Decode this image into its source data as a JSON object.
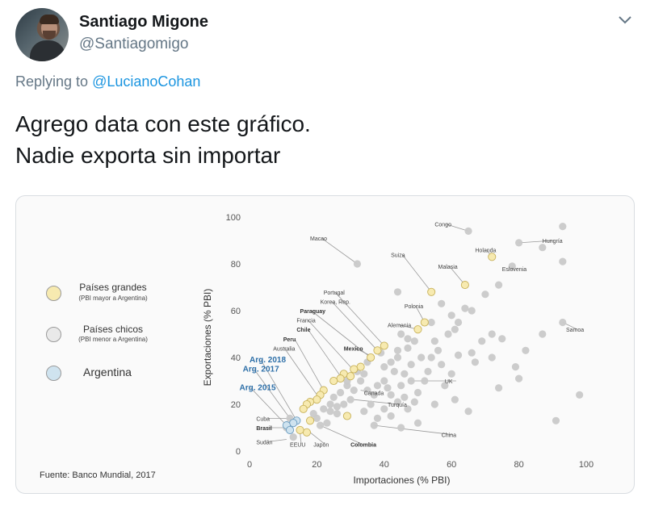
{
  "tweet": {
    "author_name": "Santiago Migone",
    "author_handle": "@Santiagomigo",
    "reply_prefix": "Replying to",
    "reply_to": "@LucianoCohan",
    "text": "Agrego data con este gráfico.\nNadie exporta sin importar"
  },
  "icons": {
    "avatar": "avatar-photo",
    "menu": "chevron-down-icon"
  },
  "colors": {
    "accent": "#1b95e0",
    "large_country": "#f7eab0",
    "small_country": "#c9c9c9",
    "argentina": "#cfe3ef",
    "argentina_label": "#2d6fa8"
  },
  "legend": {
    "large_title": "Países grandes",
    "large_sub": "(PBI mayor a Argentina)",
    "small_title": "Países chicos",
    "small_sub": "(PBI menor a Argentina)",
    "argentina": "Argentina"
  },
  "source": "Fuente: Banco Mundial, 2017",
  "chart_data": {
    "type": "scatter",
    "xlabel": "Importaciones (% PBI)",
    "ylabel": "Exportaciones (% PBI)",
    "xlim": [
      0,
      100
    ],
    "ylim": [
      0,
      100
    ],
    "xticks": [
      0,
      20,
      40,
      60,
      80,
      100
    ],
    "yticks": [
      0,
      20,
      40,
      60,
      80,
      100
    ],
    "grid": false,
    "legend_position": "left",
    "labels": [
      {
        "text": "Congo",
        "x": 65,
        "y": 94,
        "lx": 55,
        "ly": 97,
        "bold": false,
        "color": "#444444"
      },
      {
        "text": "Hungría",
        "x": 80,
        "y": 89,
        "lx": 87,
        "ly": 90,
        "bold": false,
        "color": "#444444"
      },
      {
        "text": "Macao",
        "x": 32,
        "y": 80,
        "lx": 18,
        "ly": 91,
        "bold": false,
        "color": "#444444"
      },
      {
        "text": "Suiza",
        "x": 54,
        "y": 68,
        "lx": 42,
        "ly": 84,
        "bold": false,
        "color": "#444444"
      },
      {
        "text": "Holanda",
        "x": 72,
        "y": 83,
        "lx": 67,
        "ly": 86,
        "bold": false,
        "color": "#444444"
      },
      {
        "text": "Malasia",
        "x": 64,
        "y": 71,
        "lx": 56,
        "ly": 79,
        "bold": false,
        "color": "#444444"
      },
      {
        "text": "Eslovenia",
        "x": 78,
        "y": 79,
        "lx": 75,
        "ly": 78,
        "bold": false,
        "color": "#444444"
      },
      {
        "text": "Portugal",
        "x": 40,
        "y": 45,
        "lx": 22,
        "ly": 68,
        "bold": false,
        "color": "#444444"
      },
      {
        "text": "Korea, Rep.",
        "x": 38,
        "y": 43,
        "lx": 21,
        "ly": 64,
        "bold": false,
        "color": "#444444"
      },
      {
        "text": "Paraguay",
        "x": 36,
        "y": 40,
        "lx": 15,
        "ly": 60,
        "bold": true,
        "color": "#333333"
      },
      {
        "text": "Francia",
        "x": 30,
        "y": 36,
        "lx": 14,
        "ly": 56,
        "bold": false,
        "color": "#444444"
      },
      {
        "text": "Chile",
        "x": 27,
        "y": 32,
        "lx": 14,
        "ly": 52,
        "bold": true,
        "color": "#333333"
      },
      {
        "text": "Peru",
        "x": 22,
        "y": 26,
        "lx": 10,
        "ly": 48,
        "bold": true,
        "color": "#333333"
      },
      {
        "text": "Australia",
        "x": 21,
        "y": 22,
        "lx": 7,
        "ly": 44,
        "bold": false,
        "color": "#444444"
      },
      {
        "text": "Mexico",
        "x": 37,
        "y": 40,
        "lx": 28,
        "ly": 44,
        "bold": true,
        "color": "#333333"
      },
      {
        "text": "Polonia",
        "x": 52,
        "y": 55,
        "lx": 46,
        "ly": 62,
        "bold": false,
        "color": "#444444"
      },
      {
        "text": "Alemania",
        "x": 50,
        "y": 52,
        "lx": 41,
        "ly": 54,
        "bold": false,
        "color": "#444444"
      },
      {
        "text": "Samoa",
        "x": 93,
        "y": 55,
        "lx": 94,
        "ly": 52,
        "bold": false,
        "color": "#444444"
      },
      {
        "text": "UK",
        "x": 47,
        "y": 30,
        "lx": 58,
        "ly": 30,
        "bold": false,
        "color": "#444444"
      },
      {
        "text": "Canada",
        "x": 33,
        "y": 26,
        "lx": 34,
        "ly": 25,
        "bold": false,
        "color": "#444444"
      },
      {
        "text": "Turquía",
        "x": 31,
        "y": 22,
        "lx": 41,
        "ly": 20,
        "bold": false,
        "color": "#444444"
      },
      {
        "text": "China",
        "x": 37,
        "y": 11,
        "lx": 57,
        "ly": 7,
        "bold": false,
        "color": "#444444"
      },
      {
        "text": "Cuba",
        "x": 12,
        "y": 14,
        "lx": 2,
        "ly": 14,
        "bold": false,
        "color": "#444444"
      },
      {
        "text": "Brasil",
        "x": 12,
        "y": 10,
        "lx": 2,
        "ly": 10,
        "bold": true,
        "color": "#333333"
      },
      {
        "text": "Sudán",
        "x": 11,
        "y": 5,
        "lx": 2,
        "ly": 4,
        "bold": false,
        "color": "#444444"
      },
      {
        "text": "EEUU",
        "x": 15,
        "y": 8,
        "lx": 12,
        "ly": 3,
        "bold": false,
        "color": "#444444"
      },
      {
        "text": "Japón",
        "x": 18,
        "y": 8,
        "lx": 19,
        "ly": 3,
        "bold": false,
        "color": "#444444"
      },
      {
        "text": "Colombia",
        "x": 21,
        "y": 11,
        "lx": 30,
        "ly": 3,
        "bold": true,
        "color": "#333333"
      },
      {
        "text": "Arg. 2018",
        "x": 14,
        "y": 13,
        "lx": 0,
        "ly": 39,
        "bold": true,
        "color": "#2d6fa8"
      },
      {
        "text": "Arg. 2017",
        "x": 13,
        "y": 12,
        "lx": -2,
        "ly": 35,
        "bold": true,
        "color": "#2d6fa8"
      },
      {
        "text": "Arg. 2015",
        "x": 11,
        "y": 11,
        "lx": -3,
        "ly": 27,
        "bold": true,
        "color": "#2d6fa8"
      }
    ],
    "series": [
      {
        "name": "Países grandes",
        "color": "#f7eab0",
        "points": [
          [
            72,
            83
          ],
          [
            64,
            71
          ],
          [
            54,
            68
          ],
          [
            52,
            55
          ],
          [
            50,
            52
          ],
          [
            40,
            45
          ],
          [
            38,
            43
          ],
          [
            36,
            40
          ],
          [
            33,
            36
          ],
          [
            31,
            35
          ],
          [
            28,
            33
          ],
          [
            30,
            32
          ],
          [
            27,
            31
          ],
          [
            25,
            30
          ],
          [
            22,
            26
          ],
          [
            21,
            24
          ],
          [
            20,
            22
          ],
          [
            18,
            21
          ],
          [
            17,
            20
          ],
          [
            16,
            18
          ],
          [
            29,
            15
          ],
          [
            17,
            8
          ],
          [
            15,
            9
          ],
          [
            18,
            13
          ]
        ]
      },
      {
        "name": "Países chicos",
        "color": "#c9c9c9",
        "points": [
          [
            65,
            94
          ],
          [
            80,
            89
          ],
          [
            93,
            96
          ],
          [
            87,
            87
          ],
          [
            32,
            80
          ],
          [
            78,
            79
          ],
          [
            93,
            81
          ],
          [
            44,
            68
          ],
          [
            64,
            61
          ],
          [
            70,
            67
          ],
          [
            74,
            71
          ],
          [
            60,
            58
          ],
          [
            57,
            63
          ],
          [
            62,
            55
          ],
          [
            66,
            60
          ],
          [
            72,
            50
          ],
          [
            69,
            47
          ],
          [
            59,
            50
          ],
          [
            47,
            48
          ],
          [
            45,
            50
          ],
          [
            49,
            47
          ],
          [
            56,
            43
          ],
          [
            51,
            40
          ],
          [
            47,
            44
          ],
          [
            44,
            43
          ],
          [
            54,
            40
          ],
          [
            57,
            37
          ],
          [
            62,
            41
          ],
          [
            66,
            42
          ],
          [
            72,
            40
          ],
          [
            75,
            48
          ],
          [
            93,
            55
          ],
          [
            42,
            38
          ],
          [
            40,
            36
          ],
          [
            43,
            34
          ],
          [
            46,
            33
          ],
          [
            48,
            30
          ],
          [
            45,
            28
          ],
          [
            40,
            30
          ],
          [
            38,
            28
          ],
          [
            35,
            26
          ],
          [
            34,
            33
          ],
          [
            33,
            30
          ],
          [
            31,
            26
          ],
          [
            29,
            28
          ],
          [
            27,
            25
          ],
          [
            25,
            23
          ],
          [
            26,
            19
          ],
          [
            24,
            17
          ],
          [
            28,
            20
          ],
          [
            30,
            22
          ],
          [
            36,
            20
          ],
          [
            42,
            24
          ],
          [
            44,
            21
          ],
          [
            46,
            23
          ],
          [
            50,
            25
          ],
          [
            52,
            30
          ],
          [
            47,
            18
          ],
          [
            42,
            15
          ],
          [
            38,
            14
          ],
          [
            37,
            11
          ],
          [
            45,
            10
          ],
          [
            50,
            12
          ],
          [
            55,
            20
          ],
          [
            61,
            22
          ],
          [
            65,
            17
          ],
          [
            74,
            27
          ],
          [
            79,
            36
          ],
          [
            91,
            13
          ],
          [
            98,
            24
          ],
          [
            82,
            43
          ],
          [
            87,
            50
          ],
          [
            54,
            55
          ],
          [
            39,
            42
          ],
          [
            35,
            38
          ],
          [
            32,
            34
          ],
          [
            29,
            30
          ],
          [
            24,
            20
          ],
          [
            22,
            18
          ],
          [
            26,
            16
          ],
          [
            20,
            14
          ],
          [
            23,
            12
          ],
          [
            12,
            14
          ],
          [
            11,
            10
          ],
          [
            21,
            11
          ],
          [
            13,
            6
          ],
          [
            19,
            16
          ],
          [
            34,
            17
          ],
          [
            48,
            37
          ],
          [
            53,
            34
          ],
          [
            58,
            28
          ],
          [
            60,
            33
          ],
          [
            41,
            27
          ],
          [
            37,
            24
          ],
          [
            55,
            47
          ],
          [
            61,
            52
          ],
          [
            67,
            38
          ],
          [
            80,
            31
          ],
          [
            40,
            18
          ],
          [
            49,
            21
          ],
          [
            44,
            40
          ]
        ]
      },
      {
        "name": "Argentina",
        "color": "#cfe3ef",
        "points": [
          [
            14,
            13
          ],
          [
            13,
            12
          ],
          [
            11,
            11
          ],
          [
            12,
            9
          ]
        ]
      }
    ]
  }
}
